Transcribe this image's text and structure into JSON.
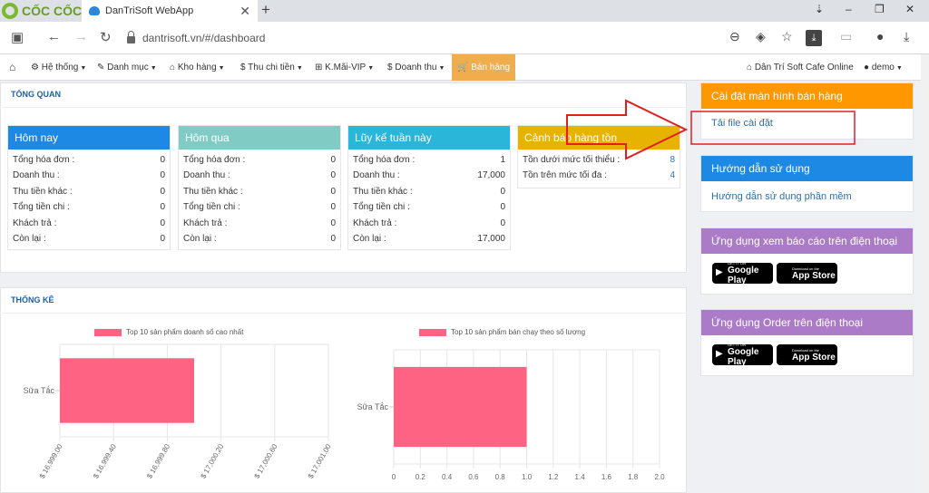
{
  "browser": {
    "brand": "CỐC CỐC",
    "tab_title": "DanTriSoft WebApp",
    "url": "dantrisoft.vn/#/dashboard"
  },
  "nav": {
    "items": [
      {
        "label": "Hệ thống"
      },
      {
        "label": "Danh mục"
      },
      {
        "label": "Kho hàng"
      },
      {
        "label": "Thu chi tiền"
      },
      {
        "label": "K.Mãi-VIP"
      },
      {
        "label": "Doanh thu"
      },
      {
        "label": "Bán hàng"
      }
    ],
    "store_name": "Dân Trí Soft Cafe Online",
    "user": "demo"
  },
  "overview": {
    "title": "TỔNG QUAN",
    "cards": [
      {
        "title": "Hôm nay",
        "color": "#1e88e5",
        "rows": [
          {
            "label": "Tổng hóa đơn :",
            "value": "0"
          },
          {
            "label": "Doanh thu :",
            "value": "0"
          },
          {
            "label": "Thu tiền khác :",
            "value": "0"
          },
          {
            "label": "Tổng tiền chi :",
            "value": "0"
          },
          {
            "label": "Khách trả :",
            "value": "0"
          },
          {
            "label": "Còn lại :",
            "value": "0"
          }
        ]
      },
      {
        "title": "Hôm qua",
        "color": "#80cbc4",
        "rows": [
          {
            "label": "Tổng hóa đơn :",
            "value": "0"
          },
          {
            "label": "Doanh thu :",
            "value": "0"
          },
          {
            "label": "Thu tiền khác :",
            "value": "0"
          },
          {
            "label": "Tổng tiền chi :",
            "value": "0"
          },
          {
            "label": "Khách trả :",
            "value": "0"
          },
          {
            "label": "Còn lại :",
            "value": "0"
          }
        ]
      },
      {
        "title": "Lũy kế tuần này",
        "color": "#29b6d8",
        "rows": [
          {
            "label": "Tổng hóa đơn :",
            "value": "1"
          },
          {
            "label": "Doanh thu :",
            "value": "17,000"
          },
          {
            "label": "Thu tiền khác :",
            "value": "0"
          },
          {
            "label": "Tổng tiền chi :",
            "value": "0"
          },
          {
            "label": "Khách trả :",
            "value": "0"
          },
          {
            "label": "Còn lại :",
            "value": "17,000"
          }
        ]
      },
      {
        "title": "Cảnh báo hàng tồn",
        "color": "#e6b400",
        "rows": [
          {
            "label": "Tồn dưới mức tối thiểu :",
            "value": "8"
          },
          {
            "label": "Tồn trên mức tối đa :",
            "value": "4"
          }
        ]
      }
    ]
  },
  "stats": {
    "title": "THỐNG KÊ"
  },
  "chart_data": [
    {
      "type": "bar",
      "orientation": "horizontal",
      "title": "Top 10 sản phẩm doanh số cao nhất",
      "categories": [
        "Sữa Tắc"
      ],
      "series": [
        {
          "name": "Top 10 sản phẩm doanh số cao nhất",
          "values": [
            17000
          ],
          "color": "#ff6384"
        }
      ],
      "xlim": [
        16999.0,
        17001.0
      ],
      "xticks": [
        "$ 16,999.00",
        "$ 16,999.40",
        "$ 16,999.80",
        "$ 17,000.20",
        "$ 17,000.60",
        "$ 17,001.00"
      ],
      "grid": true,
      "legend": "top"
    },
    {
      "type": "bar",
      "orientation": "horizontal",
      "title": "Top 10 sản phẩm bán chạy theo số lượng",
      "categories": [
        "Sữa Tắc"
      ],
      "series": [
        {
          "name": "Top 10 sản phẩm bán chạy theo số lượng",
          "values": [
            1
          ],
          "color": "#ff6384"
        }
      ],
      "xlim": [
        0,
        2.0
      ],
      "xticks": [
        "0",
        "0.2",
        "0.4",
        "0.6",
        "0.8",
        "1.0",
        "1.2",
        "1.4",
        "1.6",
        "1.8",
        "2.0"
      ],
      "grid": true,
      "legend": "top"
    }
  ],
  "side": {
    "settings": {
      "title": "Cài đặt màn hình bán hàng",
      "link": "Tải file cài đặt",
      "color": "#ff9800"
    },
    "guide": {
      "title": "Hướng dẫn sử dụng",
      "link": "Hướng dẫn sử dụng phần mềm",
      "color": "#1e88e5"
    },
    "report_app": {
      "title": "Ứng dụng xem báo cáo trên điện thoại",
      "color": "#ab7bc8"
    },
    "order_app": {
      "title": "Ứng dụng Order trên điện thoại",
      "color": "#ab7bc8"
    },
    "store": {
      "google_small": "GET IT ON",
      "google_big": "Google Play",
      "apple_small": "Download on the",
      "apple_big": "App Store"
    }
  },
  "annotation_color": "#e02020"
}
